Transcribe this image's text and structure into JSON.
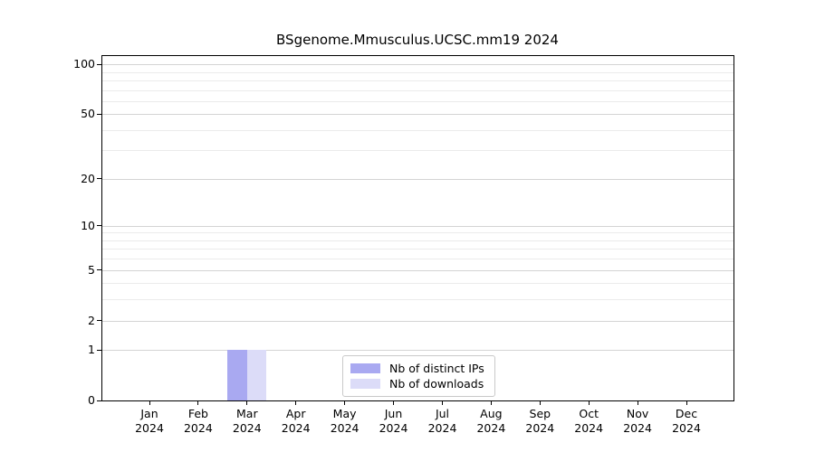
{
  "chart_data": {
    "type": "bar",
    "title": "BSgenome.Mmusculus.UCSC.mm19 2024",
    "xlabel": "",
    "ylabel": "",
    "y_scale": "log10(1+y)",
    "ylim": [
      0,
      112
    ],
    "y_ticks": [
      0,
      1,
      2,
      5,
      10,
      20,
      50,
      100
    ],
    "y_gridlines": [
      1,
      2,
      3,
      4,
      5,
      6,
      7,
      8,
      9,
      10,
      20,
      30,
      40,
      50,
      60,
      70,
      80,
      90,
      100
    ],
    "grid": true,
    "categories": [
      {
        "month": "Jan",
        "year": "2024"
      },
      {
        "month": "Feb",
        "year": "2024"
      },
      {
        "month": "Mar",
        "year": "2024"
      },
      {
        "month": "Apr",
        "year": "2024"
      },
      {
        "month": "May",
        "year": "2024"
      },
      {
        "month": "Jun",
        "year": "2024"
      },
      {
        "month": "Jul",
        "year": "2024"
      },
      {
        "month": "Aug",
        "year": "2024"
      },
      {
        "month": "Sep",
        "year": "2024"
      },
      {
        "month": "Oct",
        "year": "2024"
      },
      {
        "month": "Nov",
        "year": "2024"
      },
      {
        "month": "Dec",
        "year": "2024"
      }
    ],
    "series": [
      {
        "name": "Nb of distinct IPs",
        "color": "#A9A9F1",
        "values": [
          0,
          0,
          1,
          0,
          0,
          0,
          0,
          0,
          0,
          0,
          0,
          0
        ]
      },
      {
        "name": "Nb of downloads",
        "color": "#DCDCF8",
        "values": [
          0,
          0,
          1,
          0,
          0,
          0,
          0,
          0,
          0,
          0,
          0,
          0
        ]
      }
    ],
    "legend": {
      "position": "lower center",
      "entries": [
        "Nb of distinct IPs",
        "Nb of downloads"
      ]
    },
    "colors": {
      "grid_minor": "#ebebeb",
      "grid_major": "#d4d4d4",
      "spine": "#000000",
      "text": "#000000",
      "background": "#ffffff"
    }
  }
}
